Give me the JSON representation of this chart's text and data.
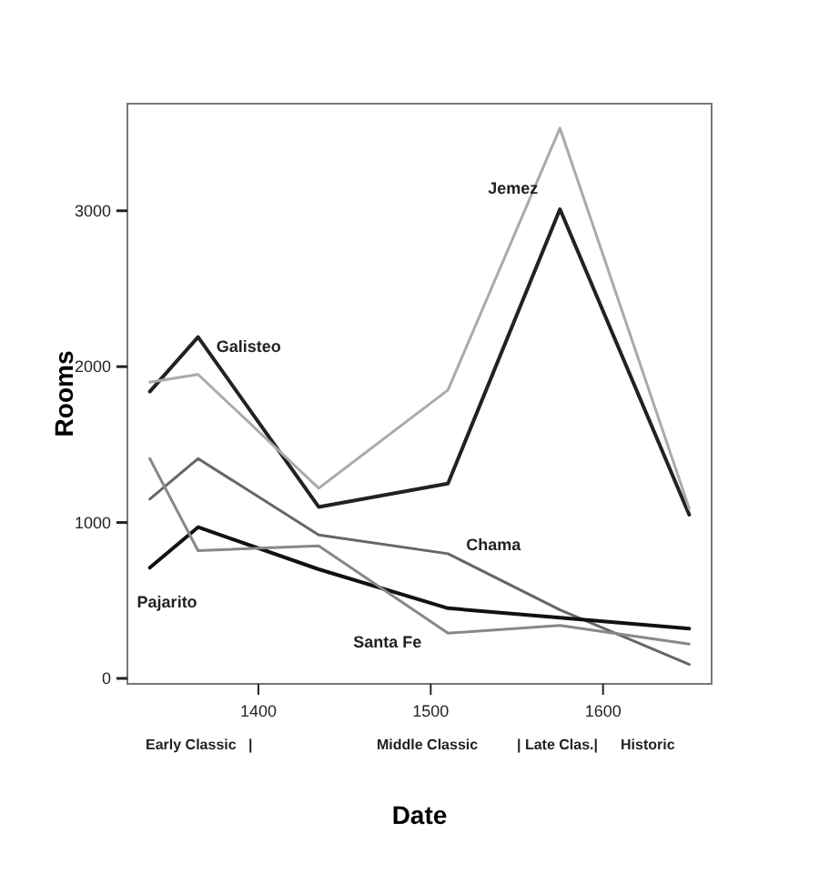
{
  "chart_data": {
    "type": "line",
    "xlabel": "Date",
    "ylabel": "Rooms",
    "xlim": [
      1324,
      1663
    ],
    "ylim": [
      -35,
      3687
    ],
    "xticks": [
      1400,
      1500,
      1600
    ],
    "yticks": [
      0,
      1000,
      2000,
      3000
    ],
    "grid": false,
    "legend": false,
    "marker": "none",
    "line_style": "solid",
    "x": [
      1337,
      1365,
      1435,
      1510,
      1575,
      1650
    ],
    "series": [
      {
        "name": "Galisteo",
        "color": "#222222",
        "values": [
          1840,
          2190,
          1100,
          1250,
          3010,
          1050
        ]
      },
      {
        "name": "Jemez",
        "color": "#aaaaaa",
        "values": [
          1900,
          1950,
          1220,
          1850,
          3530,
          1090
        ]
      },
      {
        "name": "Chama",
        "color": "#666666",
        "values": [
          1150,
          1410,
          920,
          800,
          440,
          90
        ]
      },
      {
        "name": "Pajarito",
        "color": "#111111",
        "values": [
          710,
          970,
          700,
          450,
          390,
          320
        ]
      },
      {
        "name": "Santa Fe",
        "color": "#888888",
        "values": [
          1410,
          820,
          850,
          290,
          340,
          220
        ]
      }
    ],
    "annotations": [
      "Early Classic   |",
      "Middle Classic",
      "| Late Clas.|",
      "Historic"
    ]
  }
}
